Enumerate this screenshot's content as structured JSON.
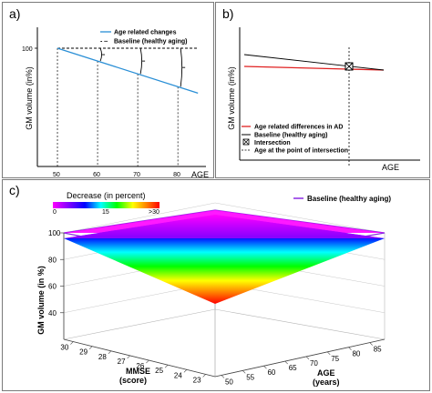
{
  "chart_data": [
    {
      "panel": "a)",
      "type": "line",
      "xlabel": "AGE",
      "ylabel": "GM volume (in%)",
      "x_ticks": [
        "50",
        "60",
        "70",
        "80"
      ],
      "y_ticks": [
        "100"
      ],
      "xlim": [
        45,
        87
      ],
      "ylim": [
        0,
        100
      ],
      "series": [
        {
          "name": "Age related changes",
          "color": "#2a8fd6",
          "x": [
            50,
            85
          ],
          "y": [
            100,
            62
          ]
        },
        {
          "name": "Baseline (healthy aging)",
          "color": "#000000",
          "style": "dashed",
          "x": [
            50,
            85
          ],
          "y": [
            100,
            100
          ]
        }
      ]
    },
    {
      "panel": "b)",
      "type": "line",
      "xlabel": "AGE",
      "ylabel": "GM volume (in%)",
      "series": [
        {
          "name": "Age related differences in AD",
          "color": "#e02020"
        },
        {
          "name": "Baseline (healthy aging)",
          "color": "#000000"
        }
      ],
      "annotations": [
        "Intersection",
        "Age at the point of intersection"
      ]
    },
    {
      "panel": "c)",
      "type": "surface",
      "colorbar_title": "Decrease (in percent)",
      "colorbar_ticks": [
        "0",
        "15",
        ">30"
      ],
      "legend": "Baseline (healthy aging)",
      "zlabel": "GM volume (in %)",
      "z_ticks": [
        "40",
        "60",
        "80",
        "100"
      ],
      "zlim": [
        20,
        100
      ],
      "mmse_label": "MMSE",
      "mmse_unit": "(score)",
      "mmse_ticks": [
        "30",
        "29",
        "28",
        "27",
        "26",
        "25",
        "24",
        "23"
      ],
      "age_label": "AGE",
      "age_unit": "(years)",
      "age_ticks": [
        "50",
        "55",
        "60",
        "65",
        "70",
        "75",
        "80",
        "85"
      ]
    }
  ]
}
